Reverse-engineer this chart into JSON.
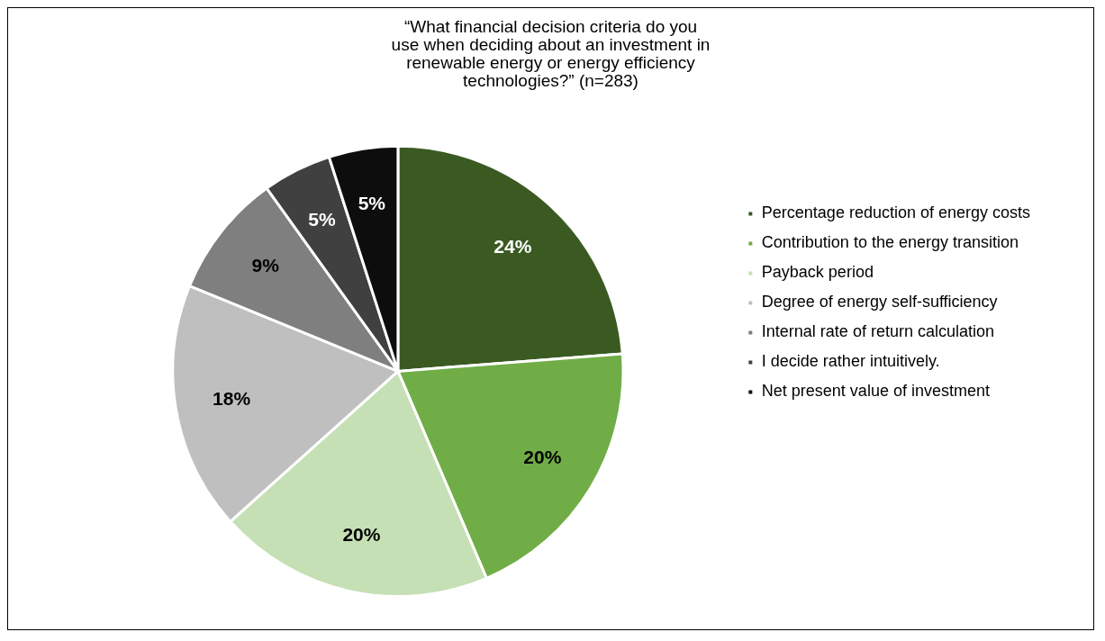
{
  "chart_data": {
    "type": "pie",
    "title": "“What financial decision criteria do you use when deciding about an investment in renewable energy or energy efficiency technologies?” (n=283)",
    "categories": [
      "Percentage reduction of energy costs",
      "Contribution to the energy transition",
      "Payback period",
      "Degree of energy self-sufficiency",
      "Internal rate of return calculation",
      "I decide rather intuitively.",
      "Net present value of investment"
    ],
    "values": [
      24,
      20,
      20,
      18,
      9,
      5,
      5
    ],
    "colors": [
      "#3a5a22",
      "#70ad47",
      "#c5e0b4",
      "#bfbfbf",
      "#7f7f7f",
      "#404040",
      "#0d0d0d"
    ],
    "value_labels": [
      "24%",
      "20%",
      "20%",
      "18%",
      "9%",
      "5%",
      "5%"
    ],
    "legend": "right"
  }
}
